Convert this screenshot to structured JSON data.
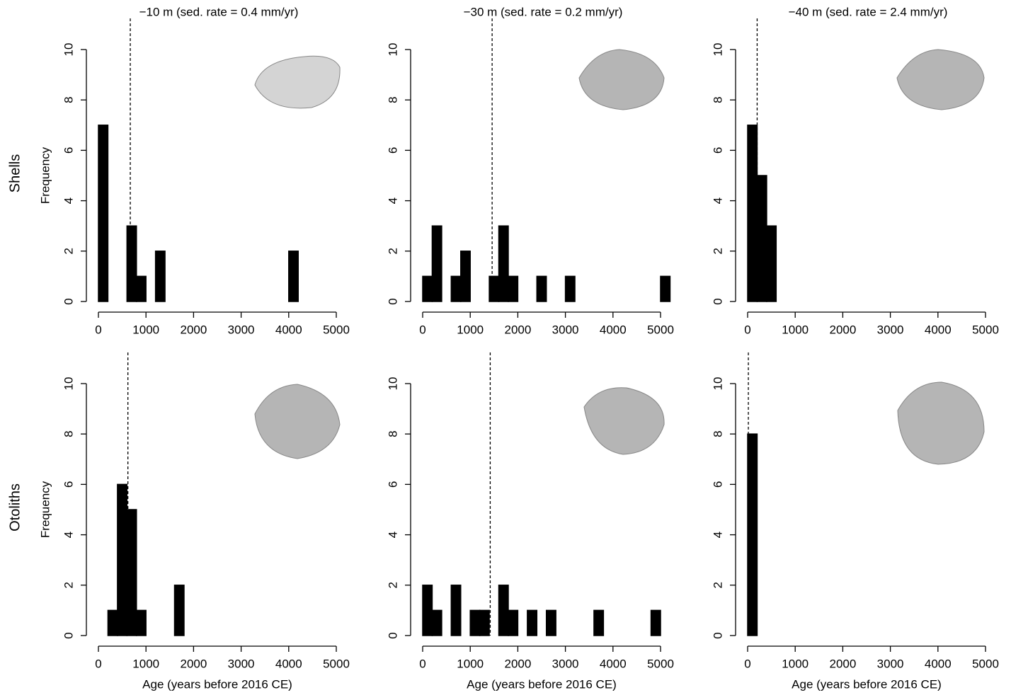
{
  "row_labels": [
    "Shells",
    "Otoliths"
  ],
  "chart_data": [
    {
      "type": "histogram",
      "title": "−10 m (sed. rate = 0.4 mm/yr)",
      "y_label": "Frequency",
      "color": "#000000",
      "bins": [
        0,
        200,
        400,
        600,
        800,
        1000,
        1200,
        1400,
        1600,
        1800,
        2000,
        2200,
        2400,
        2600,
        2800,
        3000,
        3200,
        3400,
        3600,
        3800,
        4000,
        4200,
        4400,
        4600,
        4800,
        5000
      ],
      "values": [
        7,
        0,
        0,
        3,
        1,
        0,
        2,
        0,
        0,
        0,
        0,
        0,
        0,
        0,
        0,
        0,
        0,
        0,
        0,
        0,
        2,
        0,
        0,
        0,
        0
      ],
      "reference_line": 670,
      "xlim": [
        0,
        5000
      ],
      "xticks": [
        0,
        1000,
        2000,
        3000,
        4000,
        5000
      ],
      "ylim": [
        0,
        10
      ],
      "yticks": [
        0,
        2,
        4,
        6,
        8,
        10
      ]
    },
    {
      "type": "histogram",
      "title": "−30 m (sed. rate = 0.2 mm/yr)",
      "color": "#000000",
      "bins": [
        0,
        200,
        400,
        600,
        800,
        1000,
        1200,
        1400,
        1600,
        1800,
        2000,
        2200,
        2400,
        2600,
        2800,
        3000,
        3200,
        3400,
        3600,
        3800,
        4000,
        4200,
        4400,
        4600,
        4800,
        5000,
        5200
      ],
      "values": [
        1,
        3,
        0,
        1,
        2,
        0,
        0,
        1,
        3,
        1,
        0,
        0,
        1,
        0,
        0,
        1,
        0,
        0,
        0,
        0,
        0,
        0,
        0,
        0,
        0,
        1
      ],
      "reference_line": 1460,
      "xlim": [
        0,
        5200
      ],
      "xticks": [
        0,
        1000,
        2000,
        3000,
        4000,
        5000
      ],
      "ylim": [
        0,
        10
      ],
      "yticks": [
        0,
        2,
        4,
        6,
        8,
        10
      ]
    },
    {
      "type": "histogram",
      "title": "−40 m (sed. rate = 2.4 mm/yr)",
      "color": "#000000",
      "bins": [
        0,
        200,
        400,
        600,
        800,
        1000,
        1200,
        1400,
        1600,
        1800,
        2000,
        2200,
        2400,
        2600,
        2800,
        3000,
        3200,
        3400,
        3600,
        3800,
        4000,
        4200,
        4400,
        4600,
        4800,
        5000
      ],
      "values": [
        7,
        5,
        3,
        0,
        0,
        0,
        0,
        0,
        0,
        0,
        0,
        0,
        0,
        0,
        0,
        0,
        0,
        0,
        0,
        0,
        0,
        0,
        0,
        0,
        0
      ],
      "reference_line": 200,
      "xlim": [
        0,
        5000
      ],
      "xticks": [
        0,
        1000,
        2000,
        3000,
        4000,
        5000
      ],
      "ylim": [
        0,
        10
      ],
      "yticks": [
        0,
        2,
        4,
        6,
        8,
        10
      ]
    },
    {
      "type": "histogram",
      "y_label": "Frequency",
      "x_label": "Age (years before 2016 CE)",
      "color": "#000000",
      "bins": [
        0,
        200,
        400,
        600,
        800,
        1000,
        1200,
        1400,
        1600,
        1800,
        2000,
        2200,
        2400,
        2600,
        2800,
        3000,
        3200,
        3400,
        3600,
        3800,
        4000,
        4200,
        4400,
        4600,
        4800,
        5000
      ],
      "values": [
        0,
        1,
        6,
        5,
        1,
        0,
        0,
        0,
        2,
        0,
        0,
        0,
        0,
        0,
        0,
        0,
        0,
        0,
        0,
        0,
        0,
        0,
        0,
        0,
        0
      ],
      "reference_line": 620,
      "xlim": [
        0,
        5000
      ],
      "xticks": [
        0,
        1000,
        2000,
        3000,
        4000,
        5000
      ],
      "ylim": [
        0,
        10
      ],
      "yticks": [
        0,
        2,
        4,
        6,
        8,
        10
      ]
    },
    {
      "type": "histogram",
      "x_label": "Age (years before 2016 CE)",
      "color": "#000000",
      "bins": [
        0,
        200,
        400,
        600,
        800,
        1000,
        1200,
        1400,
        1600,
        1800,
        2000,
        2200,
        2400,
        2600,
        2800,
        3000,
        3200,
        3400,
        3600,
        3800,
        4000,
        4200,
        4400,
        4600,
        4800,
        5000
      ],
      "values": [
        2,
        1,
        0,
        2,
        0,
        1,
        1,
        0,
        2,
        1,
        0,
        1,
        0,
        1,
        0,
        0,
        0,
        0,
        1,
        0,
        0,
        0,
        0,
        0,
        1
      ],
      "reference_line": 1420,
      "xlim": [
        0,
        5000
      ],
      "xticks": [
        0,
        1000,
        2000,
        3000,
        4000,
        5000
      ],
      "ylim": [
        0,
        10
      ],
      "yticks": [
        0,
        2,
        4,
        6,
        8,
        10
      ]
    },
    {
      "type": "histogram",
      "x_label": "Age (years before 2016 CE)",
      "color": "#000000",
      "bins": [
        0,
        200,
        400,
        600,
        800,
        1000,
        1200,
        1400,
        1600,
        1800,
        2000,
        2200,
        2400,
        2600,
        2800,
        3000,
        3200,
        3400,
        3600,
        3800,
        4000,
        4200,
        4400,
        4600,
        4800,
        5000
      ],
      "values": [
        8,
        0,
        0,
        0,
        0,
        0,
        0,
        0,
        0,
        0,
        0,
        0,
        0,
        0,
        0,
        0,
        0,
        0,
        0,
        0,
        0,
        0,
        0,
        0,
        0
      ],
      "reference_line": 15,
      "xlim": [
        0,
        5000
      ],
      "xticks": [
        0,
        1000,
        2000,
        3000,
        4000,
        5000
      ],
      "ylim": [
        0,
        10
      ],
      "yticks": [
        0,
        2,
        4,
        6,
        8,
        10
      ]
    }
  ]
}
